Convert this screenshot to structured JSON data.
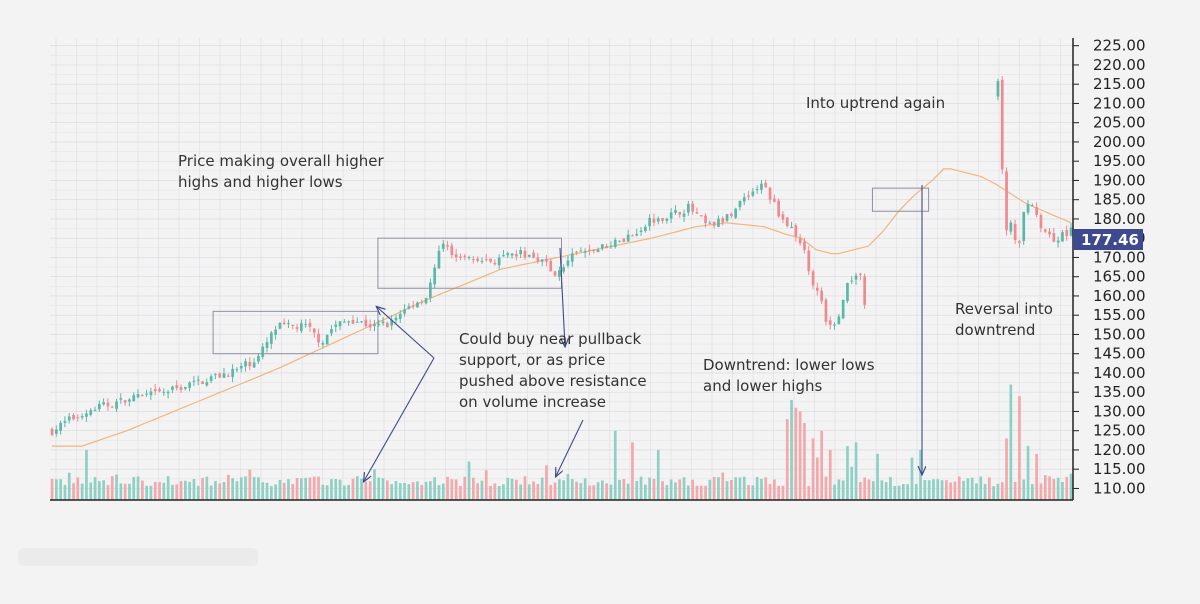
{
  "chart_data": {
    "type": "candlestick",
    "ylim": [
      107,
      227
    ],
    "y_ticks": [
      "110.00",
      "115.00",
      "120.00",
      "125.00",
      "130.00",
      "135.00",
      "140.00",
      "145.00",
      "150.00",
      "155.00",
      "160.00",
      "165.00",
      "170.00",
      "175.00",
      "180.00",
      "185.00",
      "190.00",
      "195.00",
      "200.00",
      "205.00",
      "210.00",
      "215.00",
      "220.00",
      "225.00"
    ],
    "last_price": 177.46,
    "last_price_label": "177.46",
    "grid": true,
    "colors": {
      "up": "#5bb8a8",
      "down": "#ef8a8f",
      "moving_average": "#f2b57d",
      "annotation": "#3f4a8c",
      "box": "#8d90a0",
      "price_tag": "#3e4a8f",
      "vol_up": "#8fd0c4",
      "vol_down": "#f3a8ab"
    },
    "candle_count": 238,
    "close_path": [
      [
        0,
        125
      ],
      [
        5,
        128
      ],
      [
        12,
        131
      ],
      [
        20,
        133
      ],
      [
        30,
        135
      ],
      [
        40,
        138
      ],
      [
        50,
        141
      ],
      [
        55,
        144
      ],
      [
        60,
        152
      ],
      [
        68,
        152
      ],
      [
        72,
        148
      ],
      [
        75,
        152
      ],
      [
        80,
        154
      ],
      [
        86,
        152
      ],
      [
        90,
        153
      ],
      [
        95,
        157
      ],
      [
        100,
        160
      ],
      [
        104,
        173
      ],
      [
        110,
        170
      ],
      [
        118,
        169
      ],
      [
        125,
        171
      ],
      [
        130,
        170
      ],
      [
        134,
        166
      ],
      [
        140,
        171
      ],
      [
        145,
        172
      ],
      [
        150,
        174
      ],
      [
        155,
        176
      ],
      [
        160,
        180
      ],
      [
        165,
        181
      ],
      [
        170,
        183
      ],
      [
        175,
        178
      ],
      [
        180,
        180
      ],
      [
        185,
        186
      ],
      [
        190,
        189
      ],
      [
        192,
        185
      ],
      [
        195,
        180
      ],
      [
        198,
        177
      ],
      [
        201,
        172
      ],
      [
        202,
        166
      ],
      [
        205,
        160
      ],
      [
        207,
        151
      ],
      [
        210,
        155
      ],
      [
        212,
        162
      ],
      [
        214,
        166
      ],
      [
        216,
        166
      ],
      [
        217,
        158
      ],
      [
        218,
        157
      ],
      [
        219,
        160
      ],
      [
        220,
        164
      ],
      [
        222,
        169
      ],
      [
        225,
        178
      ],
      [
        228,
        183
      ],
      [
        230,
        184
      ],
      [
        233,
        188
      ],
      [
        236,
        194
      ],
      [
        238,
        199
      ],
      [
        240,
        196
      ],
      [
        242,
        193
      ],
      [
        244,
        200
      ],
      [
        246,
        206
      ],
      [
        248,
        209
      ],
      [
        250,
        211
      ],
      [
        252,
        214
      ],
      [
        253,
        218
      ],
      [
        254,
        177
      ],
      [
        256,
        178
      ],
      [
        258,
        172
      ],
      [
        260,
        186
      ],
      [
        262,
        182
      ],
      [
        264,
        178
      ],
      [
        266,
        176
      ],
      [
        268,
        174
      ],
      [
        270,
        176
      ],
      [
        272,
        177.46
      ]
    ],
    "gaps": [
      [
        218,
        252
      ]
    ],
    "moving_average": [
      [
        0,
        121
      ],
      [
        8,
        121
      ],
      [
        20,
        125
      ],
      [
        40,
        133
      ],
      [
        60,
        141
      ],
      [
        80,
        150
      ],
      [
        100,
        159
      ],
      [
        120,
        167
      ],
      [
        140,
        171
      ],
      [
        160,
        175
      ],
      [
        172,
        178
      ],
      [
        180,
        179
      ],
      [
        190,
        178
      ],
      [
        196,
        176
      ],
      [
        200,
        175
      ],
      [
        204,
        172
      ],
      [
        208,
        171
      ],
      [
        210,
        171
      ],
      [
        214,
        172
      ],
      [
        218,
        173
      ],
      [
        222,
        177
      ],
      [
        226,
        182
      ],
      [
        230,
        186
      ],
      [
        235,
        190
      ],
      [
        238,
        193
      ],
      [
        240,
        193
      ],
      [
        244,
        192
      ],
      [
        248,
        191
      ],
      [
        252,
        189
      ],
      [
        260,
        184
      ],
      [
        272,
        179
      ]
    ],
    "volume_scale_max": 140,
    "volume_spikes": [
      [
        9,
        120
      ],
      [
        86,
        115
      ],
      [
        111,
        117
      ],
      [
        132,
        116
      ],
      [
        150,
        125
      ],
      [
        155,
        122
      ],
      [
        162,
        120
      ],
      [
        196,
        128
      ],
      [
        197,
        125
      ],
      [
        198,
        133
      ],
      [
        199,
        131
      ],
      [
        200,
        130
      ],
      [
        201,
        127
      ],
      [
        203,
        123
      ],
      [
        204,
        118
      ],
      [
        205,
        125
      ],
      [
        208,
        120
      ],
      [
        212,
        121
      ],
      [
        215,
        122
      ],
      [
        220,
        119
      ],
      [
        230,
        118
      ],
      [
        232,
        120
      ],
      [
        255,
        123
      ],
      [
        256,
        137
      ],
      [
        258,
        134
      ],
      [
        260,
        121
      ],
      [
        263,
        119
      ]
    ],
    "boxes": [
      {
        "x0": 43,
        "x1": 87,
        "y0": 145,
        "y1": 156
      },
      {
        "x0": 87,
        "x1": 136,
        "y0": 162,
        "y1": 175
      },
      {
        "x0": 219,
        "x1": 234,
        "y0": 182,
        "y1": 188
      }
    ],
    "annotations": [
      {
        "lines": [
          "Price making overall higher",
          "highs and higher lows"
        ]
      },
      {
        "lines": [
          "Could buy near pullback",
          "support, or as price",
          "pushed above resistance",
          "on volume increase"
        ]
      },
      {
        "lines": [
          "Into uptrend again"
        ]
      },
      {
        "lines": [
          "Downtrend: lower lows",
          "and lower highs"
        ]
      },
      {
        "lines": [
          "Reversal into",
          "downtrend"
        ]
      }
    ]
  }
}
